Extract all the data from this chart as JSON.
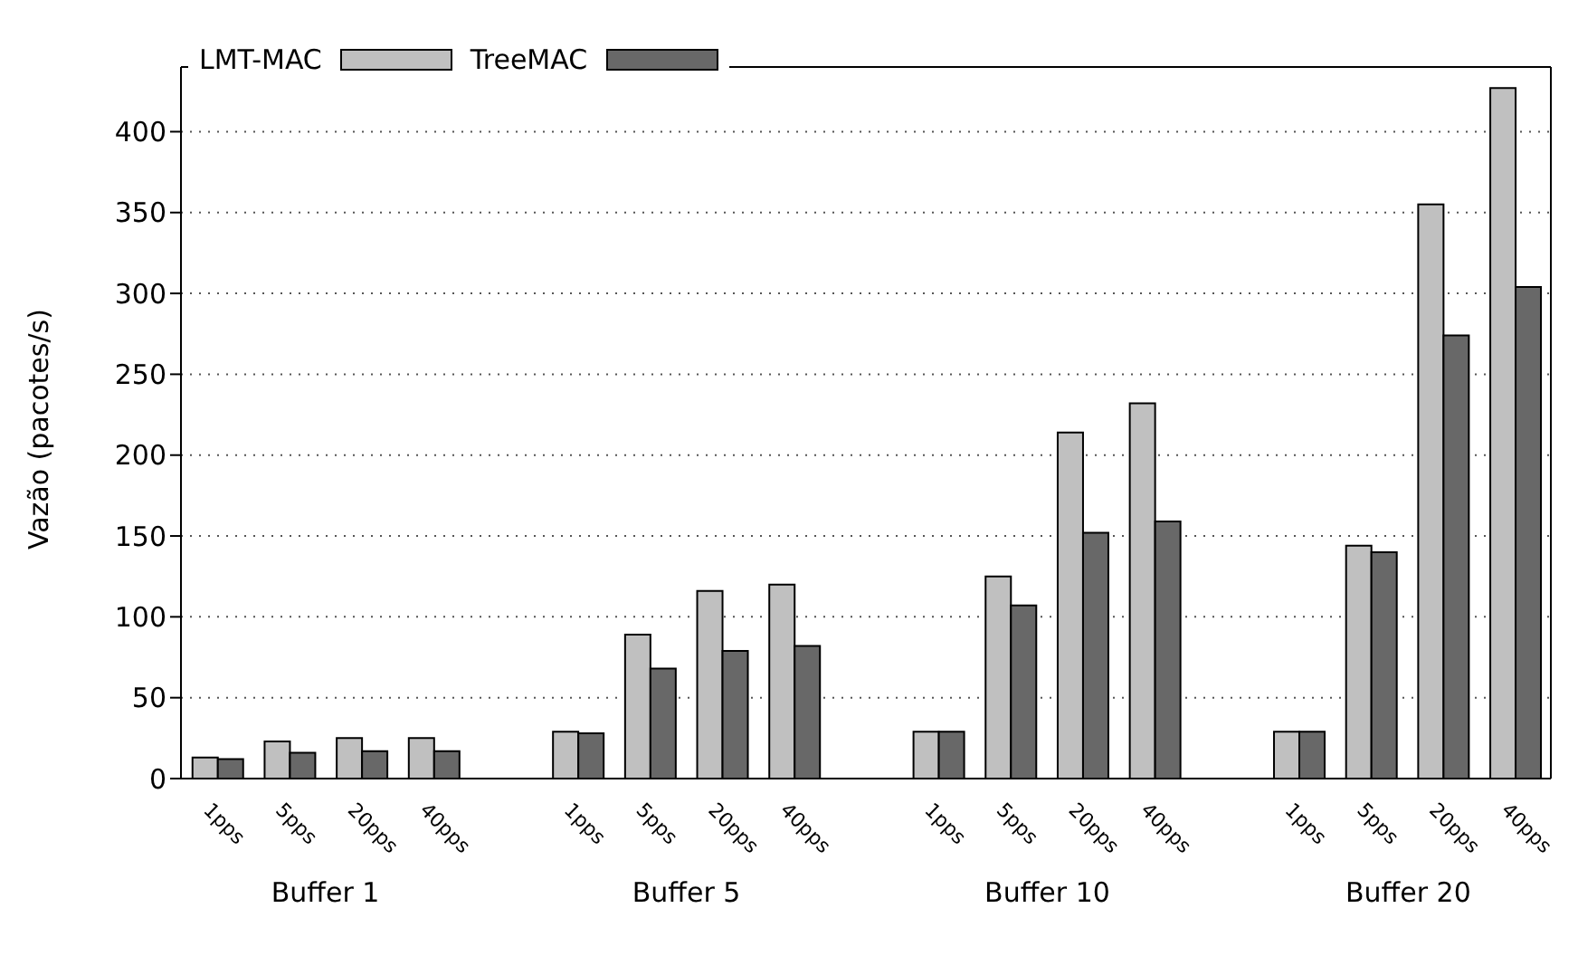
{
  "chart_data": {
    "type": "bar",
    "ylabel": "Vazão (pacotes/s)",
    "categories": [
      "1pps",
      "5pps",
      "20pps",
      "40pps",
      null,
      "1pps",
      "5pps",
      "20pps",
      "40pps",
      null,
      "1pps",
      "5pps",
      "20pps",
      "40pps",
      null,
      "1pps",
      "5pps",
      "20pps",
      "40pps"
    ],
    "series": [
      {
        "name": "LMT-MAC",
        "color": "#c0c0c0",
        "values": [
          13,
          23,
          25,
          25,
          null,
          29,
          89,
          116,
          120,
          null,
          29,
          125,
          214,
          232,
          null,
          29,
          144,
          355,
          427
        ]
      },
      {
        "name": "TreeMAC",
        "color": "#686868",
        "values": [
          12,
          16,
          17,
          17,
          null,
          28,
          68,
          79,
          82,
          null,
          29,
          107,
          152,
          159,
          null,
          29,
          140,
          274,
          304
        ]
      }
    ],
    "ylim": [
      0,
      440
    ],
    "yticks": [
      0,
      50,
      100,
      150,
      200,
      250,
      300,
      350,
      400
    ],
    "grid": "y",
    "legend": "top left",
    "annotations": [
      "Buffer 1",
      "Buffer 5",
      "Buffer 10",
      "Buffer 20"
    ]
  }
}
